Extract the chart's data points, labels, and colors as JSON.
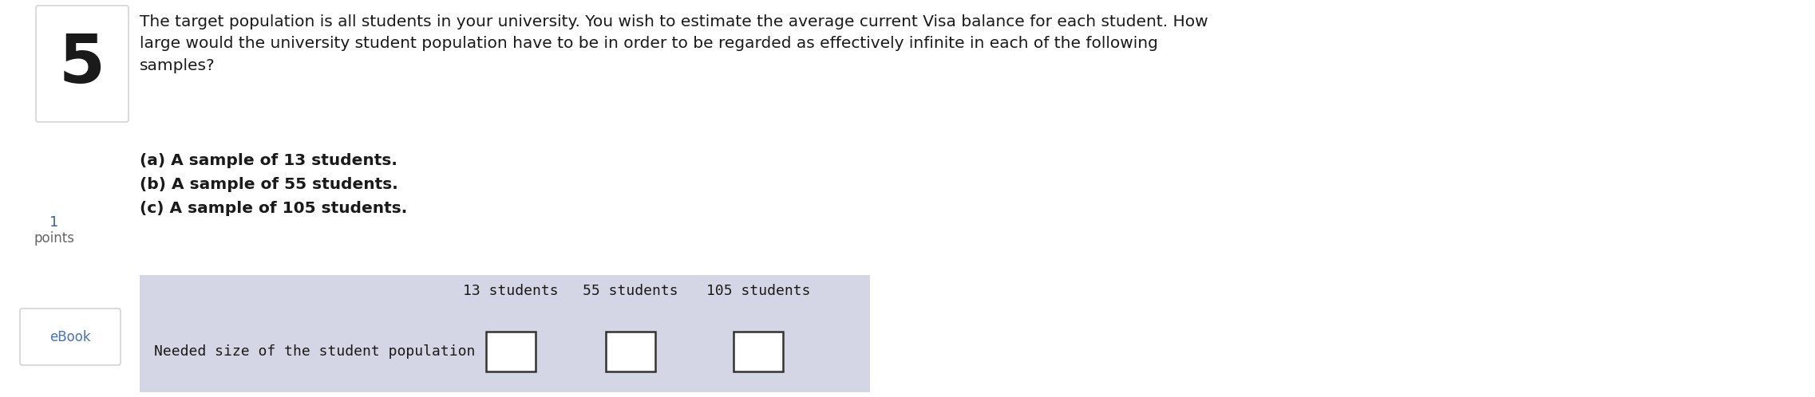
{
  "bg_color": "#ffffff",
  "number_box_color": "#ffffff",
  "number_box_border": "#cccccc",
  "number_text": "5",
  "number_fontsize": 60,
  "question_text": "The target population is all students in your university. You wish to estimate the average current Visa balance for each student. How\nlarge would the university student population have to be in order to be regarded as effectively infinite in each of the following\nsamples?",
  "question_fontsize": 14.5,
  "points_num": "1",
  "points_label": "points",
  "points_fontsize": 12,
  "ebook_text": "eBook",
  "ebook_fontsize": 12,
  "ebook_color": "#4472c4",
  "ebook_box_color": "#ffffff",
  "ebook_box_border": "#cccccc",
  "answer_a": "(a) A sample of 13 students.",
  "answer_b": "(b) A sample of 55 students.",
  "answer_c": "(c) A sample of 105 students.",
  "answer_fontsize": 14.5,
  "table_bg": "#d5d6e5",
  "table_header_labels": [
    "13 students",
    "55 students",
    "105 students"
  ],
  "table_row_label": "Needed size of the student population",
  "table_fontsize": 13,
  "box_border_color": "#333333",
  "box_fill_color": "#ffffff",
  "text_color": "#1a1a1a",
  "gray_color": "#666666"
}
